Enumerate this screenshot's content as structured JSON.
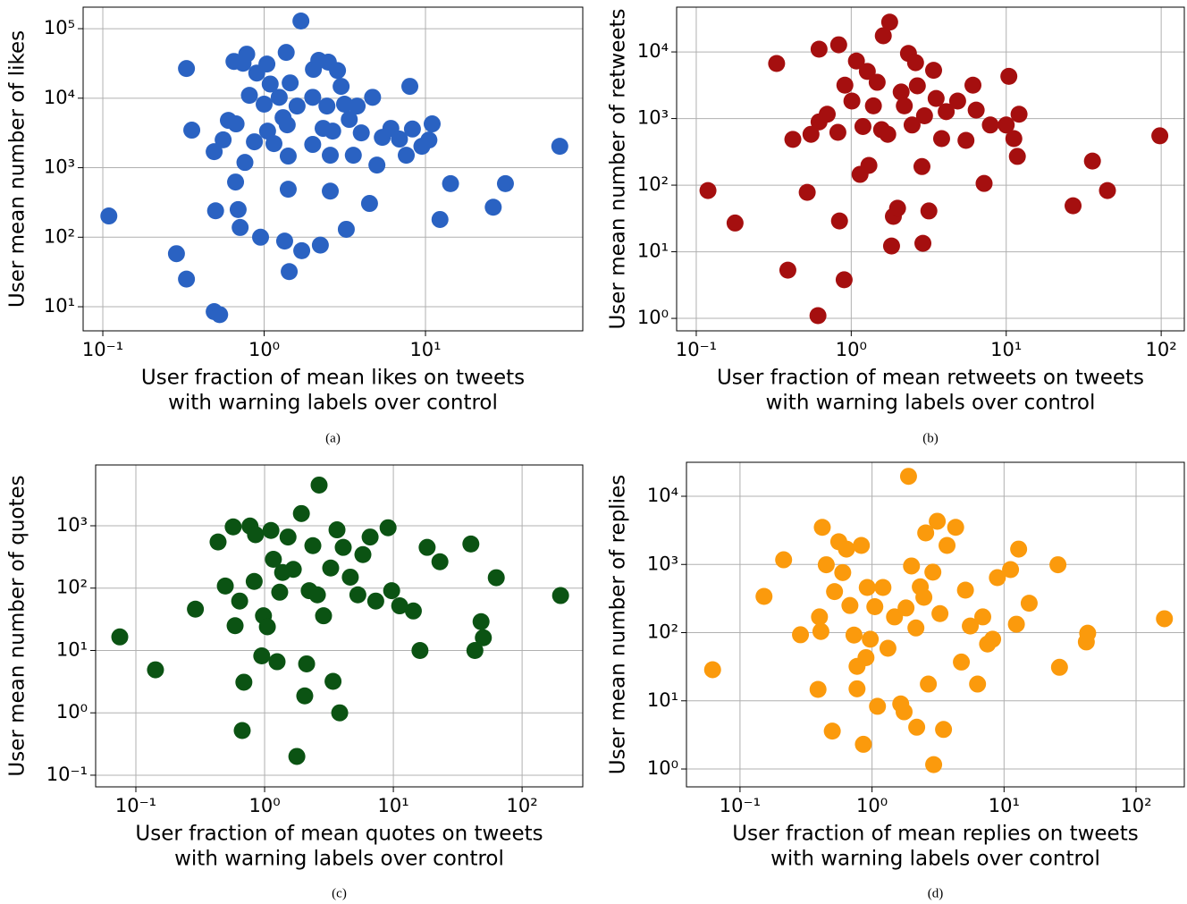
{
  "chart_data": [
    {
      "type": "scatter",
      "caption": "(a)",
      "xlabel": [
        "User fraction of mean likes on tweets",
        "with warning labels over control"
      ],
      "ylabel": "User mean number of likes",
      "color": "#2a62c2",
      "log_x": true,
      "log_y": true,
      "grid": true,
      "xlim": [
        0.0755,
        94.4
      ],
      "ylim": [
        4.5,
        204000
      ],
      "xticks": [
        {
          "value": 0.1,
          "label": "10⁻¹"
        },
        {
          "value": 1,
          "label": "10⁰"
        },
        {
          "value": 10,
          "label": "10¹"
        }
      ],
      "yticks": [
        {
          "value": 10,
          "label": "10¹"
        },
        {
          "value": 100,
          "label": "10²"
        },
        {
          "value": 1000,
          "label": "10³"
        },
        {
          "value": 10000,
          "label": "10⁴"
        },
        {
          "value": 100000,
          "label": "10⁵"
        }
      ],
      "x": [
        0.109,
        0.286,
        0.33,
        0.33,
        0.356,
        0.49,
        0.5,
        0.49,
        0.53,
        0.557,
        0.6,
        0.65,
        0.665,
        0.69,
        0.71,
        0.67,
        0.74,
        0.76,
        0.78,
        0.81,
        0.87,
        0.9,
        0.95,
        1.0,
        1.04,
        1.05,
        1.09,
        1.15,
        1.24,
        1.31,
        1.34,
        1.37,
        1.39,
        1.41,
        1.43,
        1.41,
        1.45,
        1.6,
        1.69,
        1.71,
        2.0,
        2.0,
        2.02,
        2.18,
        2.23,
        2.32,
        2.45,
        2.5,
        2.57,
        2.57,
        2.66,
        2.85,
        3.0,
        3.15,
        3.23,
        3.37,
        3.57,
        3.77,
        4.0,
        4.5,
        4.7,
        5.0,
        5.4,
        6.1,
        6.9,
        7.6,
        8.0,
        8.3,
        9.5,
        10.5,
        11,
        12.3,
        14.3,
        26.3,
        31.3,
        68
      ],
      "values": [
        202,
        58,
        25,
        26700,
        3470,
        1700,
        240,
        8.5,
        7.7,
        2520,
        4800,
        33800,
        622,
        250,
        138,
        4270,
        31800,
        1190,
        43000,
        11000,
        2360,
        23000,
        100,
        8200,
        31000,
        3360,
        16000,
        2220,
        10300,
        5250,
        88,
        45500,
        4140,
        1470,
        32,
        490,
        16600,
        7700,
        129000,
        64,
        2160,
        10300,
        26000,
        35000,
        77,
        3680,
        7700,
        33000,
        1510,
        460,
        3360,
        25000,
        14800,
        8200,
        130,
        4950,
        1510,
        7700,
        3170,
        306,
        10300,
        1090,
        2730,
        3680,
        2580,
        1510,
        14800,
        3600,
        2030,
        2500,
        4270,
        180,
        590,
        270,
        590,
        2030
      ]
    },
    {
      "type": "scatter",
      "caption": "(b)",
      "xlabel": [
        "User fraction of mean retweets on tweets",
        "with warning labels over control"
      ],
      "ylabel": "User mean number of retweets",
      "color": "#a50f0f",
      "log_x": true,
      "log_y": true,
      "grid": true,
      "xlim": [
        0.0747,
        141
      ],
      "ylim": [
        0.65,
        47000
      ],
      "xticks": [
        {
          "value": 0.1,
          "label": "10⁻¹"
        },
        {
          "value": 1,
          "label": "10⁰"
        },
        {
          "value": 10,
          "label": "10¹"
        },
        {
          "value": 100,
          "label": "10²"
        }
      ],
      "yticks": [
        {
          "value": 1,
          "label": "10⁰"
        },
        {
          "value": 10,
          "label": "10¹"
        },
        {
          "value": 100,
          "label": "10²"
        },
        {
          "value": 1000,
          "label": "10³"
        },
        {
          "value": 10000,
          "label": "10⁴"
        }
      ],
      "x": [
        0.119,
        0.178,
        0.33,
        0.39,
        0.42,
        0.52,
        0.61,
        0.55,
        0.62,
        0.62,
        0.7,
        0.83,
        0.84,
        0.9,
        0.82,
        0.91,
        1.01,
        1.08,
        1.14,
        1.19,
        1.27,
        1.3,
        1.47,
        1.39,
        1.57,
        1.77,
        1.61,
        1.72,
        1.82,
        1.87,
        1.99,
        2.1,
        2.2,
        2.34,
        2.47,
        2.6,
        2.67,
        2.86,
        2.9,
        2.97,
        3.17,
        3.4,
        3.53,
        3.83,
        4.1,
        4.86,
        5.5,
        6.1,
        6.4,
        7.2,
        7.9,
        10,
        10.4,
        11.2,
        11.8,
        12.1,
        27,
        36,
        45,
        98
      ],
      "values": [
        83,
        27,
        6700,
        5.3,
        487,
        78,
        1.1,
        580,
        890,
        11000,
        1160,
        12800,
        29,
        3.8,
        620,
        3170,
        1830,
        7300,
        145,
        760,
        5100,
        198,
        3500,
        1550,
        680,
        28000,
        17500,
        580,
        12.2,
        34,
        45,
        2500,
        1550,
        9500,
        800,
        6900,
        3100,
        190,
        13.4,
        1100,
        41,
        5300,
        2000,
        500,
        1270,
        1830,
        470,
        3170,
        1340,
        106,
        800,
        800,
        4300,
        500,
        270,
        1160,
        49,
        230,
        83,
        550
      ]
    },
    {
      "type": "scatter",
      "caption": "(c)",
      "xlabel": [
        "User fraction of mean quotes on tweets",
        "with warning labels over control"
      ],
      "ylabel": "User mean number of quotes",
      "color": "#0b5313",
      "log_x": true,
      "log_y": true,
      "grid": true,
      "xlim": [
        0.0487,
        296
      ],
      "ylim": [
        0.065,
        9440
      ],
      "xticks": [
        {
          "value": 0.1,
          "label": "10⁻¹"
        },
        {
          "value": 1,
          "label": "10⁰"
        },
        {
          "value": 10,
          "label": "10¹"
        },
        {
          "value": 100,
          "label": "10²"
        }
      ],
      "yticks": [
        {
          "value": 0.1,
          "label": "10⁻¹"
        },
        {
          "value": 1,
          "label": "10⁰"
        },
        {
          "value": 10,
          "label": "10¹"
        },
        {
          "value": 100,
          "label": "10²"
        },
        {
          "value": 1000,
          "label": "10³"
        }
      ],
      "x": [
        0.075,
        0.142,
        0.29,
        0.435,
        0.495,
        0.57,
        0.59,
        0.64,
        0.69,
        0.67,
        0.77,
        0.83,
        0.85,
        0.95,
        0.98,
        1.05,
        1.12,
        1.17,
        1.25,
        1.31,
        1.38,
        1.52,
        1.67,
        1.78,
        1.93,
        2.05,
        2.12,
        2.22,
        2.37,
        2.57,
        2.65,
        2.87,
        3.26,
        3.4,
        3.65,
        3.83,
        4.08,
        4.63,
        5.3,
        5.8,
        6.6,
        7.3,
        9.1,
        9.7,
        11.2,
        14.3,
        16.1,
        18.3,
        23,
        40,
        43,
        48,
        50,
        63,
        199
      ],
      "values": [
        16.5,
        4.9,
        46,
        550,
        108,
        960,
        25,
        62,
        3.1,
        0.52,
        990,
        128,
        720,
        8.2,
        36,
        24,
        840,
        290,
        6.6,
        86,
        178,
        660,
        200,
        0.2,
        1570,
        1.87,
        6.1,
        91,
        480,
        78,
        4500,
        36,
        210,
        3.2,
        860,
        1.0,
        450,
        150,
        78,
        345,
        660,
        62,
        930,
        91,
        52,
        43,
        10,
        450,
        265,
        510,
        10,
        29,
        16,
        147,
        76
      ]
    },
    {
      "type": "scatter",
      "caption": "(d)",
      "xlabel": [
        "User fraction of mean replies on tweets",
        "with warning labels over control"
      ],
      "ylabel": "User mean number of replies",
      "color": "#fb9a0c",
      "log_x": true,
      "log_y": true,
      "grid": true,
      "xlim": [
        0.0393,
        232
      ],
      "ylim": [
        0.547,
        31500
      ],
      "xticks": [
        {
          "value": 0.1,
          "label": "10⁻¹"
        },
        {
          "value": 1,
          "label": "10⁰"
        },
        {
          "value": 10,
          "label": "10¹"
        },
        {
          "value": 100,
          "label": "10²"
        }
      ],
      "yticks": [
        {
          "value": 1,
          "label": "10⁰"
        },
        {
          "value": 10,
          "label": "10¹"
        },
        {
          "value": 100,
          "label": "10²"
        },
        {
          "value": 1000,
          "label": "10³"
        },
        {
          "value": 10000,
          "label": "10⁴"
        }
      ],
      "x": [
        0.062,
        0.152,
        0.214,
        0.287,
        0.39,
        0.4,
        0.41,
        0.42,
        0.45,
        0.5,
        0.52,
        0.56,
        0.6,
        0.64,
        0.68,
        0.73,
        0.77,
        0.77,
        0.83,
        0.86,
        0.9,
        0.92,
        0.97,
        1.05,
        1.1,
        1.21,
        1.32,
        1.48,
        1.65,
        1.75,
        1.81,
        1.89,
        1.99,
        2.15,
        2.18,
        2.32,
        2.47,
        2.55,
        2.67,
        2.89,
        2.93,
        3.12,
        3.27,
        3.48,
        3.7,
        4.3,
        4.75,
        5.1,
        5.55,
        6.3,
        6.9,
        7.5,
        8.2,
        8.9,
        11.2,
        12.4,
        12.9,
        15.5,
        25.6,
        26.3,
        42,
        43,
        164
      ],
      "values": [
        28.6,
        340,
        1170,
        93,
        14.7,
        170,
        104,
        3500,
        990,
        3.6,
        400,
        2150,
        760,
        1680,
        250,
        92,
        32,
        15,
        1900,
        2.3,
        43,
        460,
        80,
        240,
        8.3,
        460,
        59,
        170,
        9.0,
        6.9,
        230,
        19600,
        950,
        117,
        4.1,
        470,
        330,
        2900,
        17.6,
        770,
        1.16,
        4300,
        190,
        3.8,
        1900,
        3500,
        37,
        420,
        125,
        17.6,
        170,
        68,
        80,
        640,
        840,
        133,
        1680,
        270,
        990,
        31,
        73,
        98,
        160
      ]
    }
  ]
}
